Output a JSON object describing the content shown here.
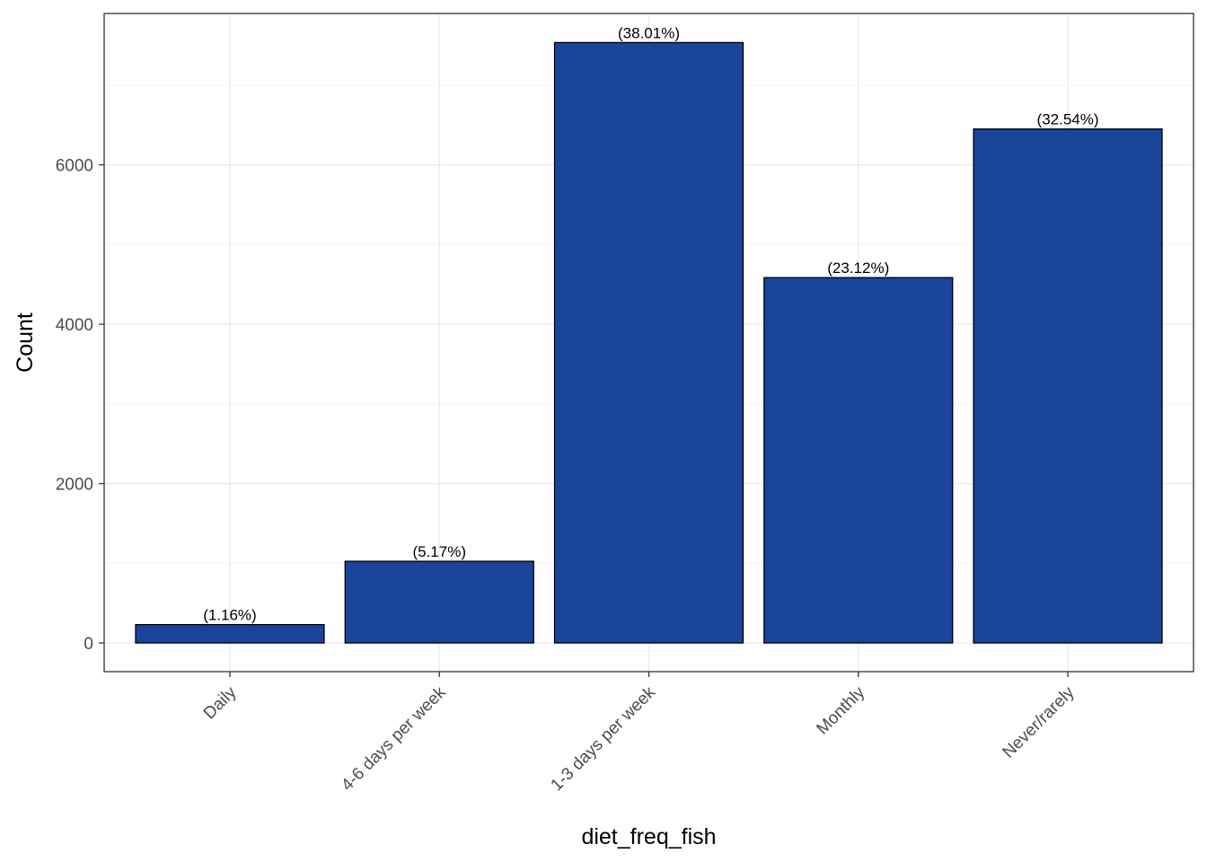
{
  "chart_data": {
    "type": "bar",
    "title": "",
    "xlabel": "diet_freq_fish",
    "ylabel": "Count",
    "categories": [
      "Daily",
      "4-6 days per week",
      "1-3 days per week",
      "Monthly",
      "Never/rarely"
    ],
    "values": [
      230,
      1025,
      7535,
      4585,
      6450
    ],
    "labels": [
      "(1.16%)",
      "(5.17%)",
      "(38.01%)",
      "(23.12%)",
      "(32.54%)"
    ],
    "ylim": [
      -360,
      7900
    ],
    "yticks": [
      0,
      2000,
      4000,
      6000
    ],
    "grid": true,
    "legend": "none",
    "colors": {
      "bar_fill": "#19449A",
      "bar_stroke": "#000000",
      "grid_major": "#EBEBEB",
      "grid_minor": "#F5F5F5",
      "panel_border": "#333333"
    }
  }
}
